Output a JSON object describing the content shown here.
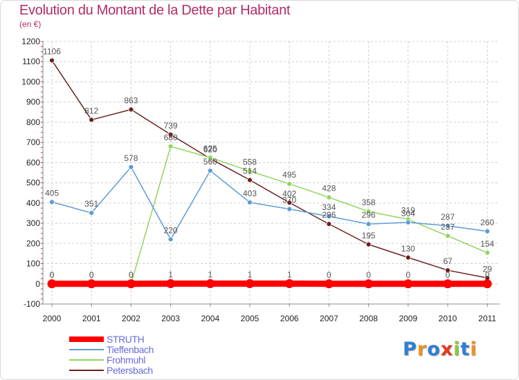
{
  "title": "Evolution du Montant de la Dette par Habitant",
  "subtitle": "(en €)",
  "logo": {
    "text": "Proxiti",
    "colors": [
      "#2f7fd6",
      "#f0931e",
      "#2f7fd6",
      "#e53a1f",
      "#8cc63f",
      "#2f7fd6",
      "#f0931e"
    ]
  },
  "chart_data": {
    "type": "line",
    "title": "Evolution du Montant de la Dette par Habitant",
    "subtitle": "(en €)",
    "xlabel": "",
    "ylabel": "",
    "ylim": [
      -100,
      1200
    ],
    "yticks": [
      -100,
      0,
      100,
      200,
      300,
      400,
      500,
      600,
      700,
      800,
      900,
      1000,
      1100,
      1200
    ],
    "grid": true,
    "legend": "bottom-left",
    "categories": [
      "2000",
      "2001",
      "2002",
      "2003",
      "2004",
      "2005",
      "2006",
      "2007",
      "2008",
      "2009",
      "2010",
      "2011"
    ],
    "series": [
      {
        "name": "STRUTH",
        "color": "#ff0000",
        "values": [
          0,
          0,
          0,
          1,
          1,
          1,
          1,
          0,
          0,
          0,
          0,
          0
        ],
        "labels": [
          "0",
          "0",
          "0",
          "1",
          "1",
          "1",
          "1",
          "0",
          "0",
          "0",
          "0",
          "0"
        ]
      },
      {
        "name": "Tieffenbach",
        "color": "#5a9bd6",
        "values": [
          405,
          351,
          578,
          220,
          560,
          403,
          370,
          334,
          296,
          304,
          287,
          260
        ],
        "labels": [
          "405",
          "351",
          "578",
          "220",
          "560",
          "403",
          "370",
          "334",
          "296",
          "304",
          "287",
          "260"
        ]
      },
      {
        "name": "Frohmuhl",
        "color": "#8fd65a",
        "values": [
          0,
          0,
          0,
          680,
          625,
          558,
          495,
          428,
          358,
          319,
          237,
          154
        ],
        "labels": [
          "0",
          "0",
          "0",
          "680",
          "625",
          "558",
          "495",
          "428",
          "358",
          "319",
          "237",
          "154"
        ]
      },
      {
        "name": "Petersbach",
        "color": "#6b1f1f",
        "values": [
          1106,
          812,
          863,
          739,
          620,
          514,
          402,
          296,
          195,
          130,
          67,
          29
        ],
        "labels": [
          "1106",
          "812",
          "863",
          "739",
          "620",
          "514",
          "402",
          "296",
          "195",
          "130",
          "67",
          "29"
        ]
      }
    ]
  }
}
